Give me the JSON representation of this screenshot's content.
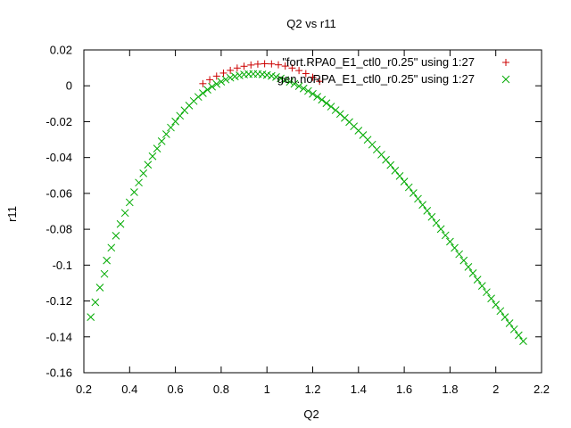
{
  "chart_data": {
    "type": "scatter",
    "title": "Q2 vs r11",
    "xlabel": "Q2",
    "ylabel": "r11",
    "xlim": [
      0.2,
      2.2
    ],
    "ylim": [
      -0.16,
      0.02
    ],
    "x_ticks": [
      "0.2",
      "0.4",
      "0.6",
      "0.8",
      "1",
      "1.2",
      "1.4",
      "1.6",
      "1.8",
      "2",
      "2.2"
    ],
    "y_ticks": [
      "0.02",
      "0",
      "-0.02",
      "-0.04",
      "-0.06",
      "-0.08",
      "-0.1",
      "-0.12",
      "-0.14",
      "-0.16"
    ],
    "grid": false,
    "legend_position": "top-right",
    "series": [
      {
        "name": "\"fort.RPA0_E1_ctl0_r0.25\" using 1:27",
        "marker": "plus",
        "color": "#cc0000",
        "x": [
          0.72,
          0.75,
          0.78,
          0.81,
          0.84,
          0.87,
          0.9,
          0.93,
          0.96,
          0.99,
          1.02,
          1.05,
          1.08,
          1.11,
          1.14,
          1.17,
          1.2,
          1.23
        ],
        "y": [
          0.0012,
          0.0034,
          0.0054,
          0.0071,
          0.0086,
          0.0099,
          0.0109,
          0.0116,
          0.0121,
          0.0123,
          0.0122,
          0.0117,
          0.011,
          0.0099,
          0.0085,
          0.0068,
          0.0048,
          0.0025
        ]
      },
      {
        "name": "gen.noRPA_E1_ctl0_r0.25\" using 1:27",
        "marker": "cross",
        "color": "#00aa00",
        "x": [
          0.23,
          0.25,
          0.27,
          0.29,
          0.3,
          0.32,
          0.34,
          0.36,
          0.38,
          0.4,
          0.42,
          0.44,
          0.46,
          0.48,
          0.5,
          0.52,
          0.54,
          0.56,
          0.58,
          0.6,
          0.62,
          0.64,
          0.66,
          0.68,
          0.7,
          0.72,
          0.74,
          0.76,
          0.78,
          0.8,
          0.82,
          0.84,
          0.86,
          0.88,
          0.9,
          0.92,
          0.94,
          0.96,
          0.98,
          1.0,
          1.02,
          1.04,
          1.06,
          1.08,
          1.1,
          1.12,
          1.14,
          1.16,
          1.18,
          1.2,
          1.22,
          1.24,
          1.26,
          1.28,
          1.3,
          1.32,
          1.34,
          1.36,
          1.38,
          1.4,
          1.42,
          1.44,
          1.46,
          1.48,
          1.5,
          1.52,
          1.54,
          1.56,
          1.58,
          1.6,
          1.62,
          1.64,
          1.66,
          1.68,
          1.7,
          1.72,
          1.74,
          1.76,
          1.78,
          1.8,
          1.82,
          1.84,
          1.86,
          1.88,
          1.9,
          1.92,
          1.94,
          1.96,
          1.98,
          2.0,
          2.02,
          2.04,
          2.06,
          2.08,
          2.1,
          2.12
        ],
        "y": [
          -0.129,
          -0.1207,
          -0.1125,
          -0.1049,
          -0.0974,
          -0.0903,
          -0.0836,
          -0.0771,
          -0.0709,
          -0.065,
          -0.0593,
          -0.054,
          -0.0488,
          -0.044,
          -0.0393,
          -0.035,
          -0.0309,
          -0.027,
          -0.0233,
          -0.0199,
          -0.0167,
          -0.0137,
          -0.011,
          -0.0085,
          -0.0062,
          -0.0041,
          -0.0022,
          -0.0005,
          0.001,
          0.0023,
          0.0035,
          0.0045,
          0.0052,
          0.0058,
          0.0063,
          0.0065,
          0.0066,
          0.0066,
          0.0064,
          0.006,
          0.0055,
          0.0049,
          0.0041,
          0.0032,
          0.0022,
          0.0011,
          -0.0002,
          -0.0015,
          -0.0029,
          -0.0045,
          -0.0061,
          -0.0078,
          -0.0097,
          -0.0116,
          -0.0136,
          -0.0157,
          -0.0179,
          -0.0202,
          -0.0226,
          -0.025,
          -0.0275,
          -0.0301,
          -0.0328,
          -0.0356,
          -0.0384,
          -0.0413,
          -0.0442,
          -0.0473,
          -0.0503,
          -0.0534,
          -0.0566,
          -0.0598,
          -0.063,
          -0.0664,
          -0.0697,
          -0.0731,
          -0.0765,
          -0.0799,
          -0.0834,
          -0.0869,
          -0.0904,
          -0.0939,
          -0.0974,
          -0.101,
          -0.1045,
          -0.1081,
          -0.1116,
          -0.1151,
          -0.1186,
          -0.1221,
          -0.1256,
          -0.129,
          -0.1324,
          -0.1358,
          -0.1391,
          -0.1424
        ]
      }
    ]
  }
}
